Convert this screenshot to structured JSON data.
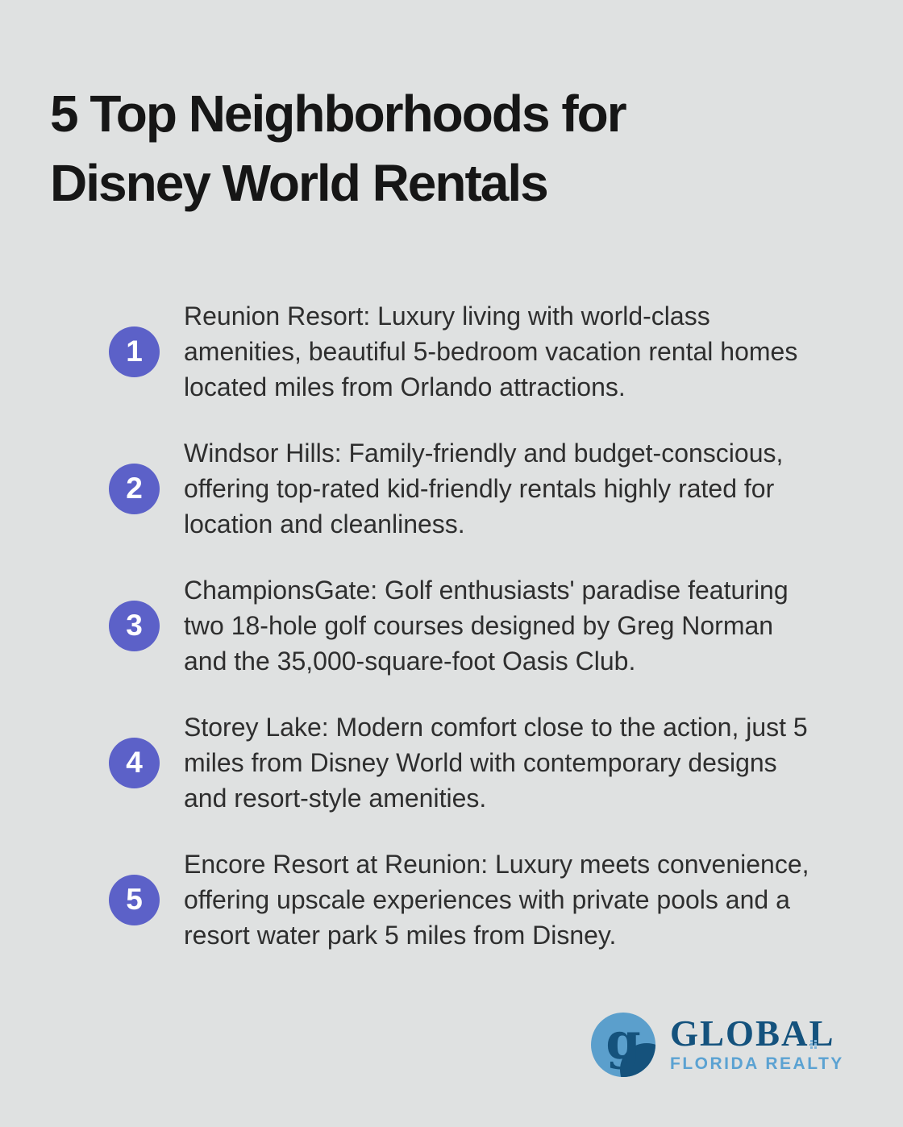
{
  "page": {
    "background_color": "#dfe1e1"
  },
  "header": {
    "title_line1": "5 Top Neighborhoods for",
    "title_line2": "Disney World Rentals"
  },
  "list": {
    "badge_color": "#5c61c8",
    "items": [
      {
        "number": "1",
        "text": "Reunion Resort: Luxury living with world-class amenities, beautiful 5-bedroom vacation rental homes located miles from Orlando attractions."
      },
      {
        "number": "2",
        "text": "Windsor Hills: Family-friendly and budget-conscious, offering top-rated kid-friendly rentals highly rated for location and cleanliness."
      },
      {
        "number": "3",
        "text": "ChampionsGate: Golf enthusiasts' paradise featuring two 18-hole golf courses designed by Greg Norman and the 35,000-square-foot Oasis Club."
      },
      {
        "number": "4",
        "text": "Storey Lake: Modern comfort close to the action, just 5 miles from Disney World with contemporary designs and resort-style amenities."
      },
      {
        "number": "5",
        "text": "Encore Resort at Reunion: Luxury meets convenience, offering upscale experiences with private pools and a resort water park 5 miles from Disney."
      }
    ]
  },
  "footer": {
    "logo": {
      "monogram": "g",
      "brand_name": "GLOBAL",
      "brand_subtitle": "FLORIDA REALTY",
      "colors": {
        "light_blue": "#5b9fcc",
        "dark_blue": "#14527d"
      }
    }
  }
}
